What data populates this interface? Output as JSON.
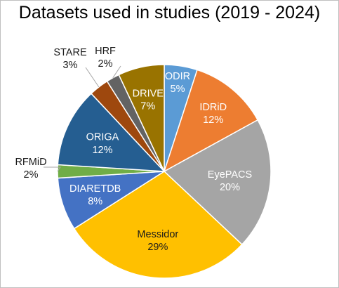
{
  "chart_data": {
    "type": "pie",
    "title": "Datasets used in studies (2019 - 2024)",
    "slices": [
      {
        "name": "ODIR",
        "value": 5,
        "label": "5%",
        "color": "#5b9bd5"
      },
      {
        "name": "IDRiD",
        "value": 12,
        "label": "12%",
        "color": "#ed7d31"
      },
      {
        "name": "EyePACS",
        "value": 20,
        "label": "20%",
        "color": "#a5a5a5"
      },
      {
        "name": "Messidor",
        "value": 29,
        "label": "29%",
        "color": "#ffc000"
      },
      {
        "name": "DIARETDB",
        "value": 8,
        "label": "8%",
        "color": "#4472c4"
      },
      {
        "name": "RFMiD",
        "value": 2,
        "label": "2%",
        "color": "#70ad47"
      },
      {
        "name": "ORIGA",
        "value": 12,
        "label": "12%",
        "color": "#255e91"
      },
      {
        "name": "STARE",
        "value": 3,
        "label": "3%",
        "color": "#9e480e"
      },
      {
        "name": "HRF",
        "value": 2,
        "label": "2%",
        "color": "#636363"
      },
      {
        "name": "DRIVE",
        "value": 7,
        "label": "7%",
        "color": "#997300"
      }
    ],
    "start_angle_deg": 0,
    "direction": "clockwise",
    "legend": "none"
  }
}
